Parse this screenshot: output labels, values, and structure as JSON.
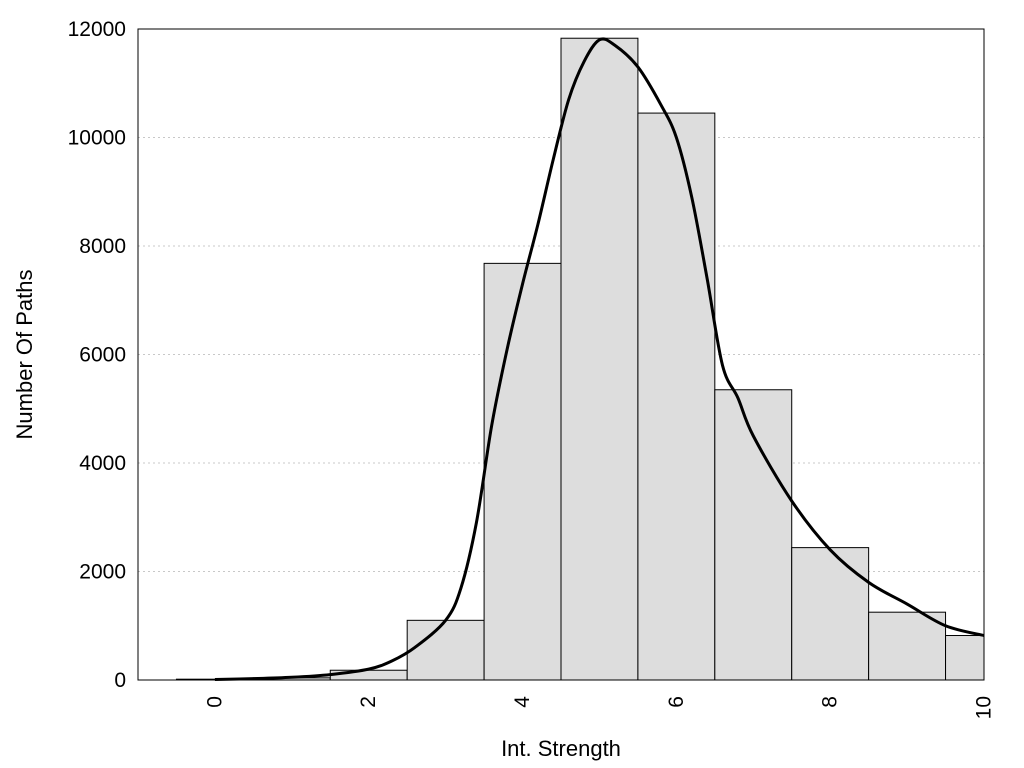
{
  "chart_data": {
    "type": "bar",
    "title": "",
    "xlabel": "Int. Strength",
    "ylabel": "Number Of Paths",
    "xlim": [
      -1,
      10
    ],
    "ylim": [
      0,
      12000
    ],
    "xticks": [
      0,
      2,
      4,
      6,
      8,
      10
    ],
    "yticks": [
      0,
      2000,
      4000,
      6000,
      8000,
      10000,
      12000
    ],
    "grid": "horizontal-dotted",
    "legend": "none",
    "bar_color": "#dddddd",
    "bar_edge_color": "#000000",
    "line_color": "#000000",
    "series": [
      {
        "type": "bar",
        "bin_width": 1,
        "x": [
          0,
          1,
          2,
          3,
          4,
          5,
          6,
          7,
          8,
          9,
          10
        ],
        "values": [
          15,
          40,
          180,
          1100,
          7680,
          11830,
          10450,
          5350,
          2440,
          1250,
          820
        ]
      },
      {
        "type": "line",
        "smooth": true,
        "x": [
          0,
          0.5,
          1,
          1.5,
          2,
          2.3,
          2.6,
          3,
          3.2,
          3.4,
          3.6,
          3.8,
          4,
          4.2,
          4.4,
          4.6,
          4.8,
          5,
          5.2,
          5.5,
          5.8,
          6,
          6.2,
          6.4,
          6.6,
          6.8,
          7,
          7.5,
          8,
          8.5,
          9,
          9.5,
          10
        ],
        "values": [
          10,
          25,
          50,
          100,
          200,
          350,
          600,
          1100,
          1700,
          2900,
          4700,
          6100,
          7300,
          8400,
          9600,
          10700,
          11400,
          11800,
          11700,
          11300,
          10600,
          10000,
          8900,
          7400,
          5800,
          5200,
          4500,
          3300,
          2400,
          1800,
          1400,
          1000,
          820
        ]
      }
    ]
  }
}
